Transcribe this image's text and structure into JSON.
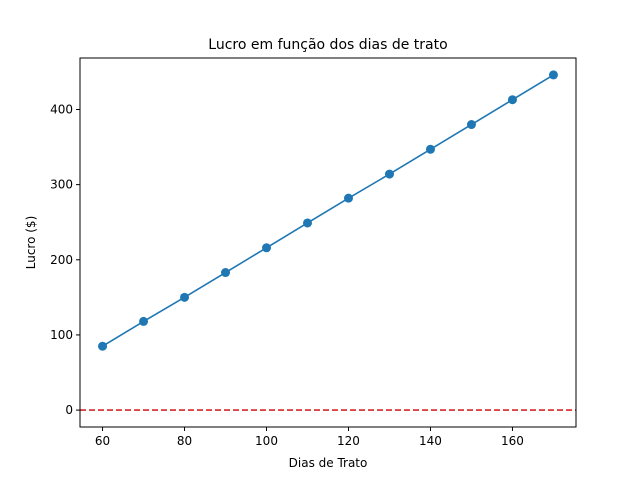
{
  "chart_data": {
    "type": "line",
    "title": "Lucro em função dos dias de trato",
    "xlabel": "Dias de Trato",
    "ylabel": "Lucro ($)",
    "xlim": [
      54.5,
      175.5
    ],
    "ylim": [
      -22.5,
      468.5
    ],
    "xticks": [
      60,
      80,
      100,
      120,
      140,
      160
    ],
    "yticks": [
      0,
      100,
      200,
      300,
      400
    ],
    "grid": false,
    "series": [
      {
        "x": [
          60,
          70,
          80,
          90,
          100,
          110,
          120,
          130,
          140,
          150,
          160,
          170
        ],
        "y": [
          85,
          118,
          150,
          183,
          216,
          249,
          282,
          314,
          347,
          380,
          413,
          446
        ],
        "color": "#1f77b4",
        "marker": "circle"
      }
    ],
    "reference_line": {
      "y": 0,
      "color": "#d62728",
      "style": "dashed"
    }
  }
}
